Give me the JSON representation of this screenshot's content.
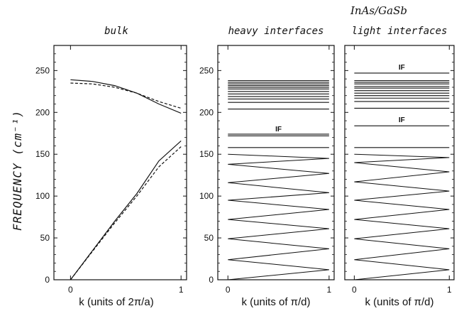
{
  "figure": {
    "group_title": "InAs/GaSb",
    "ylabel": "FREQUENCY (cm⁻¹)",
    "yticks": [
      "0",
      "50",
      "100",
      "150",
      "200",
      "250"
    ],
    "if_label": "IF"
  },
  "chart_data": [
    {
      "type": "line",
      "title": "bulk",
      "xlabel": "k (units of 2π/a)",
      "xticks": [
        "0",
        "1"
      ],
      "xlim": [
        -0.15,
        1.05
      ],
      "ylim": [
        0,
        280
      ],
      "series": [
        {
          "style": "solid",
          "x": [
            0,
            0.2,
            0.4,
            0.6,
            0.8,
            1.0
          ],
          "y": [
            239,
            237,
            232,
            223,
            210,
            199
          ]
        },
        {
          "style": "dashed",
          "x": [
            0,
            0.2,
            0.4,
            0.6,
            0.8,
            1.0
          ],
          "y": [
            235,
            234,
            230,
            223,
            213,
            205
          ]
        },
        {
          "style": "solid",
          "x": [
            0,
            0.2,
            0.4,
            0.6,
            0.8,
            1.0
          ],
          "y": [
            0,
            35,
            70,
            103,
            142,
            166
          ]
        },
        {
          "style": "dashed",
          "x": [
            0,
            0.2,
            0.4,
            0.6,
            0.8,
            1.0
          ],
          "y": [
            0,
            34,
            68,
            100,
            135,
            159
          ]
        }
      ]
    },
    {
      "type": "line",
      "title": "heavy interfaces",
      "xlabel": "k (units of π/d)",
      "xticks": [
        "0",
        "1"
      ],
      "xlim": [
        -0.1,
        1.05
      ],
      "ylim": [
        0,
        280
      ],
      "acoustic_vertices": [
        0,
        12,
        24,
        37,
        49,
        61,
        72,
        84,
        95,
        104,
        116,
        127,
        138,
        145,
        150
      ],
      "flat_modes": [
        158,
        172,
        174,
        204,
        212,
        216,
        219,
        222,
        225,
        228,
        230,
        232,
        234,
        236,
        238
      ],
      "if_modes": [
        {
          "label": "IF",
          "y": 173
        }
      ]
    },
    {
      "type": "line",
      "title": "light interfaces",
      "xlabel": "k (units of π/d)",
      "xticks": [
        "0",
        "1"
      ],
      "xlim": [
        -0.1,
        1.05
      ],
      "ylim": [
        0,
        280
      ],
      "acoustic_vertices": [
        0,
        12,
        24,
        37,
        49,
        61,
        72,
        84,
        95,
        106,
        117,
        129,
        140,
        146,
        150
      ],
      "flat_modes": [
        158,
        184,
        205,
        213,
        217,
        220,
        223,
        226,
        229,
        231,
        234,
        236,
        238,
        247
      ],
      "if_modes": [
        {
          "label": "IF",
          "y": 247
        },
        {
          "label": "IF",
          "y": 184
        }
      ]
    }
  ]
}
